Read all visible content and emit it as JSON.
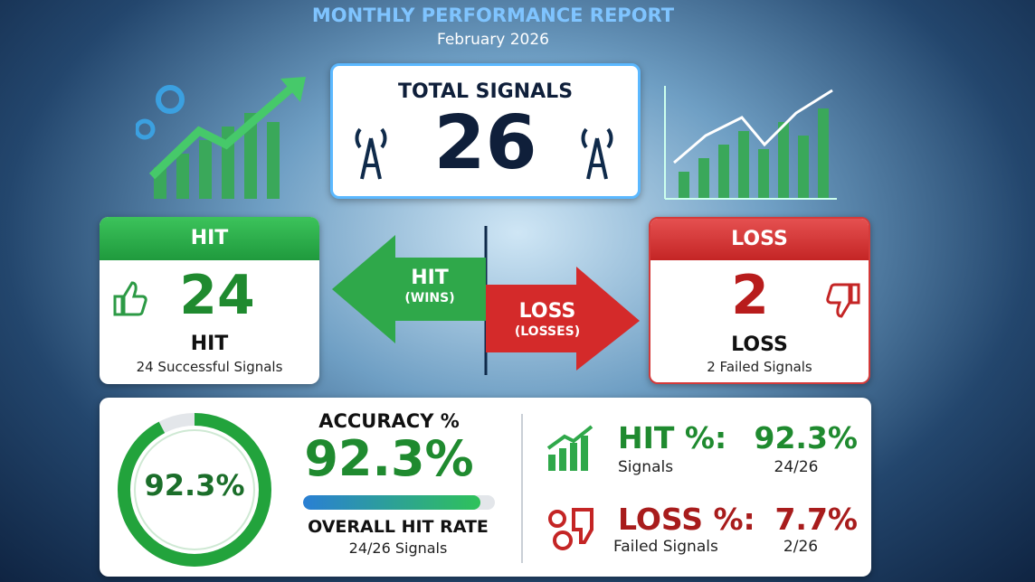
{
  "header": {
    "title": "MONTHLY PERFORMANCE REPORT",
    "subtitle": "February 2026"
  },
  "total": {
    "label": "TOTAL SIGNALS",
    "value": "26"
  },
  "hit_card": {
    "header": "HIT",
    "value": "24",
    "label": "HIT",
    "caption": "24 Successful Signals"
  },
  "loss_card": {
    "header": "LOSS",
    "value": "2",
    "label": "LOSS",
    "caption": "2 Failed Signals"
  },
  "arrows": {
    "hit": "HIT",
    "hit_sub": "(WINS)",
    "loss": "LOSS",
    "loss_sub": "(LOSSES)"
  },
  "gauge": {
    "value": 92.3,
    "label": "92.3%"
  },
  "accuracy": {
    "title": "ACCURACY %",
    "value": "92.3%",
    "rate_label": "OVERALL HIT RATE",
    "caption": "24/26 Signals"
  },
  "hit_pct": {
    "label": "HIT %:",
    "value": "92.3%",
    "caption": "Signals",
    "ratio": "24/26"
  },
  "loss_pct": {
    "label": "LOSS %:",
    "value": "7.7%",
    "caption": "Failed Signals",
    "ratio": "2/26"
  }
}
